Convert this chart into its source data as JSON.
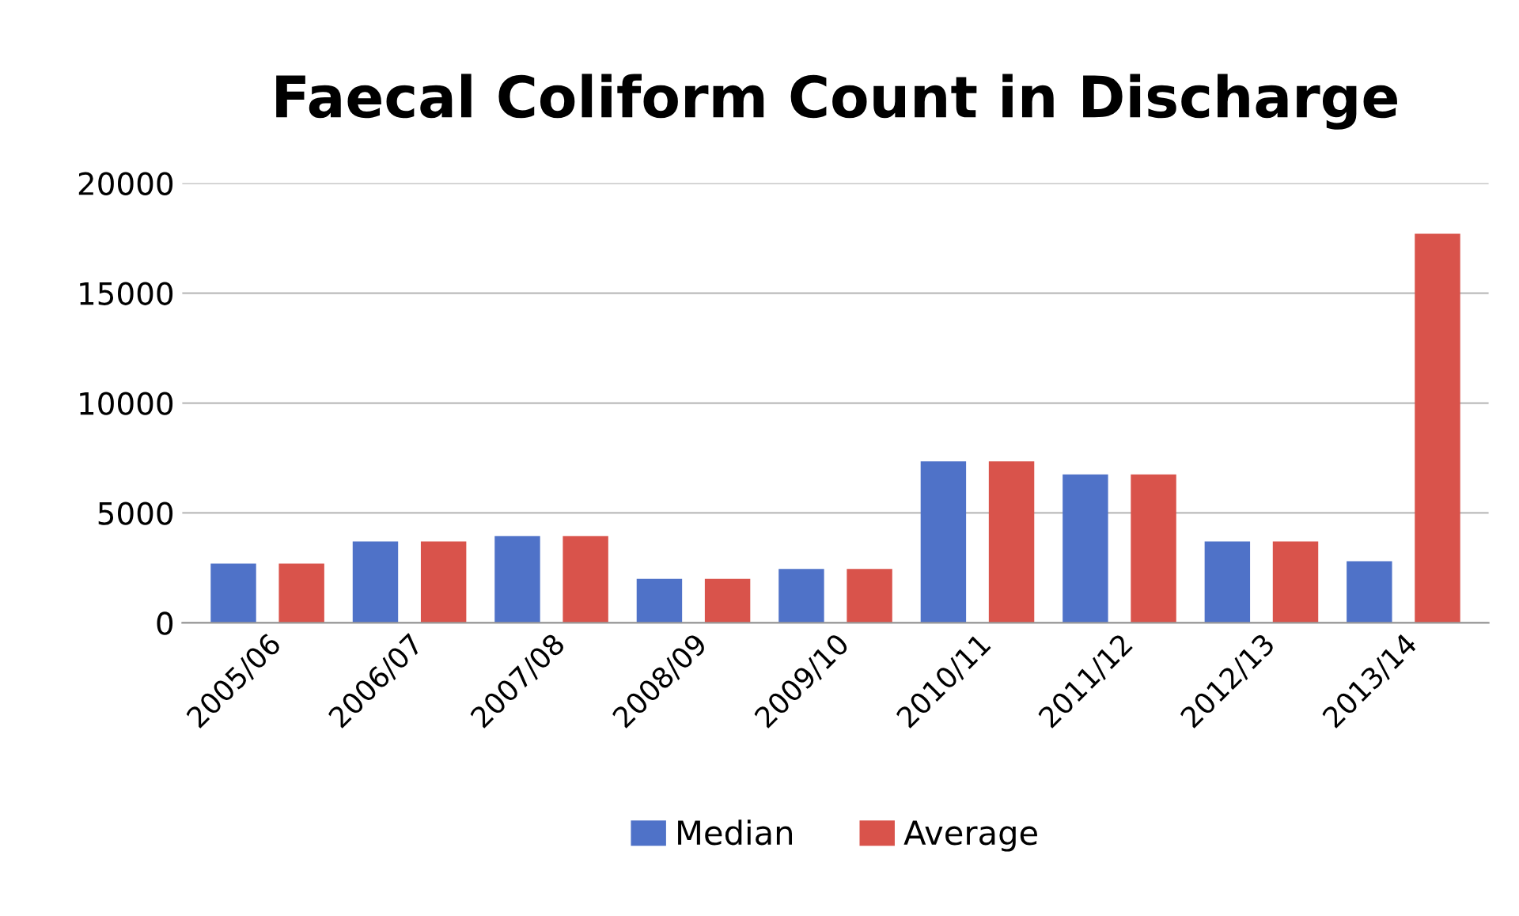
{
  "chart_data": {
    "type": "bar",
    "title": "Faecal Coliform Count in Discharge",
    "categories": [
      "2005/06",
      "2006/07",
      "2007/08",
      "2008/09",
      "2009/10",
      "2010/11",
      "2011/12",
      "2012/13",
      "2013/14"
    ],
    "series": [
      {
        "name": "Median",
        "color": "#4f72c8",
        "values": [
          2700,
          3700,
          3950,
          2000,
          2450,
          7350,
          6750,
          3700,
          2800
        ]
      },
      {
        "name": "Average",
        "color": "#d9534b",
        "values": [
          2700,
          3700,
          3950,
          2000,
          2450,
          7350,
          6750,
          3700,
          17700
        ]
      }
    ],
    "ylim": [
      0,
      20000
    ],
    "yticks": [
      0,
      5000,
      10000,
      15000,
      20000
    ],
    "grid": "y",
    "legend": "bottom"
  }
}
